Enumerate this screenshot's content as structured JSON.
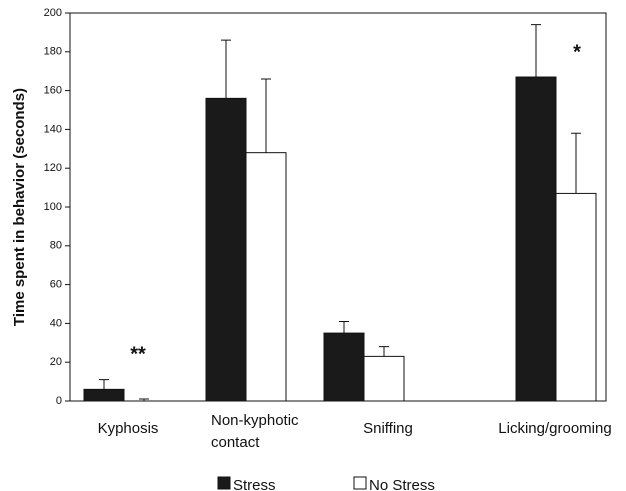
{
  "chart_data": {
    "type": "bar",
    "ylabel": "Time spent in behavior (seconds)",
    "categories": [
      "Kyphosis",
      "Non-kyphotic contact",
      "Sniffing",
      "Licking/grooming"
    ],
    "series": [
      {
        "name": "Stress",
        "color": "#1a1a1a",
        "values": [
          6,
          156,
          35,
          167
        ],
        "errors": [
          5,
          30,
          6,
          27
        ]
      },
      {
        "name": "No Stress",
        "color": "#ffffff",
        "values": [
          0,
          128,
          23,
          107
        ],
        "errors": [
          1,
          38,
          5,
          31
        ]
      }
    ],
    "annotations": [
      "**",
      "*"
    ],
    "ylim": [
      0,
      200
    ],
    "yticks": [
      0,
      20,
      40,
      60,
      80,
      100,
      120,
      140,
      160,
      180,
      200
    ]
  }
}
